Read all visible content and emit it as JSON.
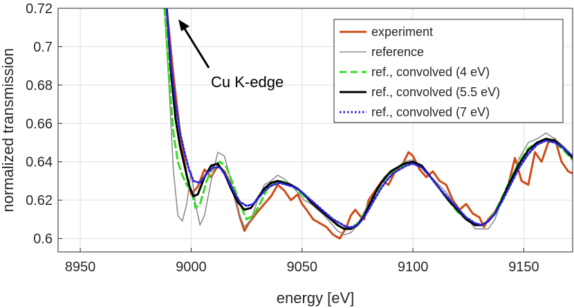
{
  "chart_data": {
    "type": "line",
    "title": "",
    "xlabel": "energy [eV]",
    "ylabel": "normalized transmission",
    "xlim": [
      8940,
      9172
    ],
    "ylim": [
      0.593,
      0.72
    ],
    "xticks": [
      8950,
      9000,
      9050,
      9100,
      9150
    ],
    "xtick_labels": [
      "8950",
      "9000",
      "9050",
      "9100",
      "9150"
    ],
    "yticks": [
      0.6,
      0.62,
      0.64,
      0.66,
      0.68,
      0.7,
      0.72
    ],
    "ytick_labels": [
      "0.6",
      "0.62",
      "0.64",
      "0.66",
      "0.68",
      "0.7",
      "0.72"
    ],
    "grid": true,
    "legend_position": "top-right",
    "annotation": {
      "text": "Cu K-edge",
      "arrow_to": {
        "x": 8993,
        "y": 0.7155
      }
    },
    "series": [
      {
        "name": "experiment",
        "color": "#d04a14",
        "style": "solid",
        "x": [
          8989,
          8992,
          8995,
          8998,
          9000,
          9003,
          9006,
          9009,
          9012,
          9015,
          9018,
          9020,
          9022,
          9024,
          9026,
          9028,
          9030,
          9033,
          9036,
          9039,
          9042,
          9045,
          9048,
          9050,
          9052,
          9055,
          9058,
          9061,
          9064,
          9067,
          9070,
          9072,
          9074,
          9076,
          9078,
          9080,
          9083,
          9086,
          9089,
          9092,
          9095,
          9098,
          9100,
          9103,
          9106,
          9109,
          9112,
          9115,
          9118,
          9121,
          9124,
          9127,
          9130,
          9132,
          9134,
          9137,
          9140,
          9143,
          9146,
          9149,
          9152,
          9155,
          9158,
          9161,
          9164,
          9167,
          9170,
          9172
        ],
        "y": [
          0.72,
          0.685,
          0.655,
          0.633,
          0.623,
          0.627,
          0.636,
          0.632,
          0.638,
          0.635,
          0.628,
          0.62,
          0.611,
          0.604,
          0.608,
          0.611,
          0.614,
          0.618,
          0.622,
          0.628,
          0.625,
          0.62,
          0.623,
          0.618,
          0.615,
          0.61,
          0.608,
          0.606,
          0.602,
          0.6,
          0.606,
          0.612,
          0.615,
          0.612,
          0.61,
          0.62,
          0.625,
          0.63,
          0.628,
          0.635,
          0.638,
          0.645,
          0.643,
          0.636,
          0.632,
          0.635,
          0.63,
          0.628,
          0.62,
          0.615,
          0.618,
          0.613,
          0.611,
          0.606,
          0.61,
          0.614,
          0.62,
          0.628,
          0.642,
          0.63,
          0.628,
          0.645,
          0.64,
          0.65,
          0.652,
          0.64,
          0.635,
          0.634
        ]
      },
      {
        "name": "reference",
        "color": "#8c8c8c",
        "style": "solid",
        "x": [
          8988,
          8990,
          8992,
          8994,
          8996,
          8998,
          9000,
          9002,
          9004,
          9006,
          9009,
          9012,
          9015,
          9018,
          9021,
          9024,
          9027,
          9030,
          9033,
          9036,
          9039,
          9042,
          9045,
          9048,
          9051,
          9054,
          9057,
          9060,
          9063,
          9066,
          9069,
          9072,
          9075,
          9078,
          9081,
          9084,
          9087,
          9090,
          9093,
          9096,
          9100,
          9105,
          9110,
          9115,
          9120,
          9125,
          9128,
          9131,
          9134,
          9137,
          9140,
          9144,
          9148,
          9152,
          9156,
          9160,
          9164,
          9168,
          9172
        ],
        "y": [
          0.72,
          0.68,
          0.635,
          0.612,
          0.609,
          0.618,
          0.635,
          0.618,
          0.607,
          0.612,
          0.63,
          0.645,
          0.643,
          0.63,
          0.615,
          0.606,
          0.61,
          0.62,
          0.628,
          0.63,
          0.633,
          0.631,
          0.628,
          0.624,
          0.62,
          0.618,
          0.615,
          0.612,
          0.608,
          0.604,
          0.602,
          0.603,
          0.607,
          0.614,
          0.62,
          0.626,
          0.632,
          0.635,
          0.637,
          0.64,
          0.641,
          0.636,
          0.63,
          0.624,
          0.616,
          0.61,
          0.605,
          0.605,
          0.605,
          0.61,
          0.62,
          0.63,
          0.642,
          0.65,
          0.652,
          0.655,
          0.652,
          0.648,
          0.643
        ]
      },
      {
        "name": "ref., convolved (4 eV)",
        "color": "#33dd22",
        "style": "dashed",
        "x": [
          8988,
          8990,
          8992,
          8994,
          8996,
          8998,
          9000,
          9002,
          9004,
          9007,
          9010,
          9013,
          9016,
          9019,
          9022,
          9025,
          9028,
          9031,
          9034,
          9037,
          9040,
          9043,
          9046,
          9049,
          9052,
          9055,
          9058,
          9061,
          9064,
          9067,
          9070,
          9073,
          9076,
          9079,
          9082,
          9085,
          9088,
          9091,
          9094,
          9097,
          9100,
          9104,
          9108,
          9112,
          9116,
          9120,
          9124,
          9128,
          9131,
          9134,
          9137,
          9140,
          9144,
          9148,
          9152,
          9156,
          9160,
          9164,
          9168,
          9172
        ],
        "y": [
          0.72,
          0.685,
          0.655,
          0.64,
          0.633,
          0.628,
          0.625,
          0.616,
          0.618,
          0.63,
          0.638,
          0.64,
          0.637,
          0.628,
          0.618,
          0.61,
          0.612,
          0.618,
          0.625,
          0.629,
          0.63,
          0.629,
          0.627,
          0.624,
          0.621,
          0.618,
          0.615,
          0.612,
          0.609,
          0.606,
          0.605,
          0.606,
          0.609,
          0.615,
          0.621,
          0.627,
          0.632,
          0.635,
          0.637,
          0.639,
          0.64,
          0.637,
          0.632,
          0.626,
          0.62,
          0.614,
          0.61,
          0.607,
          0.607,
          0.609,
          0.614,
          0.621,
          0.631,
          0.64,
          0.647,
          0.65,
          0.652,
          0.65,
          0.646,
          0.641
        ]
      },
      {
        "name": "ref., convolved (5.5 eV)",
        "color": "#000000",
        "style": "solid",
        "x": [
          8989,
          8991,
          8993,
          8995,
          8997,
          8999,
          9001,
          9003,
          9006,
          9009,
          9012,
          9015,
          9018,
          9021,
          9024,
          9027,
          9030,
          9033,
          9036,
          9039,
          9042,
          9045,
          9048,
          9051,
          9054,
          9057,
          9060,
          9063,
          9066,
          9069,
          9072,
          9075,
          9078,
          9081,
          9084,
          9087,
          9090,
          9093,
          9096,
          9100,
          9104,
          9108,
          9112,
          9116,
          9120,
          9124,
          9128,
          9131,
          9134,
          9137,
          9140,
          9144,
          9148,
          9152,
          9156,
          9160,
          9164,
          9168,
          9172
        ],
        "y": [
          0.72,
          0.685,
          0.662,
          0.648,
          0.638,
          0.628,
          0.622,
          0.623,
          0.632,
          0.638,
          0.639,
          0.634,
          0.626,
          0.619,
          0.615,
          0.616,
          0.621,
          0.626,
          0.629,
          0.63,
          0.629,
          0.628,
          0.626,
          0.623,
          0.619,
          0.616,
          0.613,
          0.61,
          0.607,
          0.605,
          0.605,
          0.607,
          0.612,
          0.619,
          0.626,
          0.631,
          0.635,
          0.637,
          0.639,
          0.64,
          0.638,
          0.632,
          0.626,
          0.62,
          0.615,
          0.61,
          0.607,
          0.607,
          0.609,
          0.613,
          0.62,
          0.63,
          0.639,
          0.646,
          0.65,
          0.652,
          0.651,
          0.647,
          0.642
        ]
      },
      {
        "name": "ref., convolved (7 eV)",
        "color": "#2a22dd",
        "style": "dotted",
        "x": [
          8989,
          8991,
          8993,
          8995,
          8997,
          8999,
          9001,
          9004,
          9007,
          9010,
          9013,
          9016,
          9019,
          9022,
          9025,
          9028,
          9031,
          9034,
          9037,
          9040,
          9043,
          9046,
          9049,
          9052,
          9055,
          9058,
          9061,
          9064,
          9067,
          9070,
          9073,
          9076,
          9079,
          9082,
          9085,
          9088,
          9091,
          9094,
          9097,
          9100,
          9104,
          9108,
          9112,
          9116,
          9120,
          9124,
          9128,
          9131,
          9134,
          9137,
          9140,
          9144,
          9148,
          9152,
          9156,
          9160,
          9164,
          9168,
          9172
        ],
        "y": [
          0.72,
          0.69,
          0.67,
          0.655,
          0.645,
          0.636,
          0.63,
          0.629,
          0.634,
          0.637,
          0.637,
          0.632,
          0.625,
          0.619,
          0.617,
          0.618,
          0.622,
          0.626,
          0.628,
          0.629,
          0.628,
          0.627,
          0.625,
          0.622,
          0.619,
          0.616,
          0.613,
          0.61,
          0.608,
          0.606,
          0.606,
          0.608,
          0.613,
          0.619,
          0.625,
          0.63,
          0.634,
          0.636,
          0.638,
          0.639,
          0.637,
          0.632,
          0.626,
          0.621,
          0.616,
          0.611,
          0.608,
          0.607,
          0.609,
          0.613,
          0.619,
          0.628,
          0.637,
          0.644,
          0.649,
          0.651,
          0.65,
          0.647,
          0.643
        ]
      }
    ]
  }
}
